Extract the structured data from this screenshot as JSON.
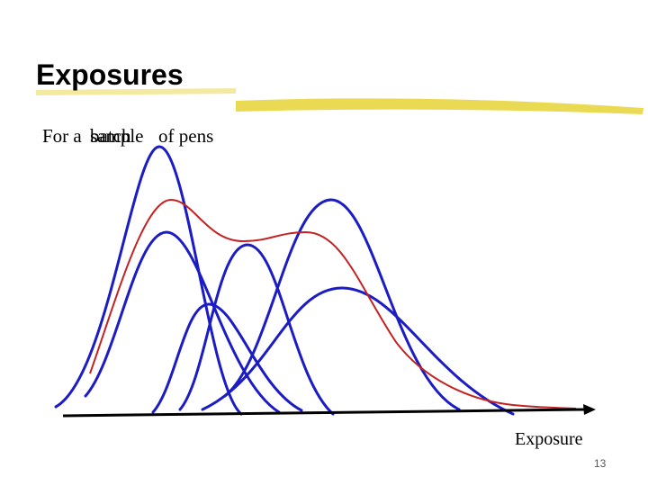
{
  "slide": {
    "title": "Exposures",
    "subtitle": {
      "lead": "For a",
      "word_a": "sample",
      "word_b": "batch",
      "tail": "of pens"
    },
    "axis_label": "Exposure",
    "page_number": "13"
  }
}
